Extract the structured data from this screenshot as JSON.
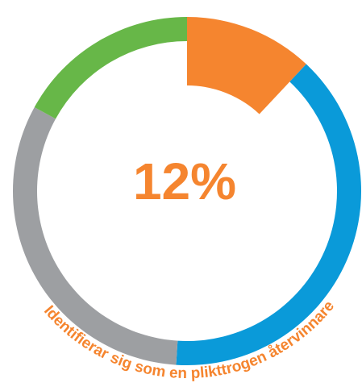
{
  "chart_data": {
    "type": "donut",
    "annotation": "Identifierar sig som en plikttrogen återvinnare",
    "categories": [
      null,
      null,
      null,
      null
    ],
    "values": [
      12,
      39,
      32,
      17
    ],
    "value_labels": [
      "12%",
      null,
      null,
      null
    ],
    "colors": [
      "#f5852f",
      "#0a9ad9",
      "#9d9fa2",
      "#67b748"
    ],
    "highlight": 0
  }
}
